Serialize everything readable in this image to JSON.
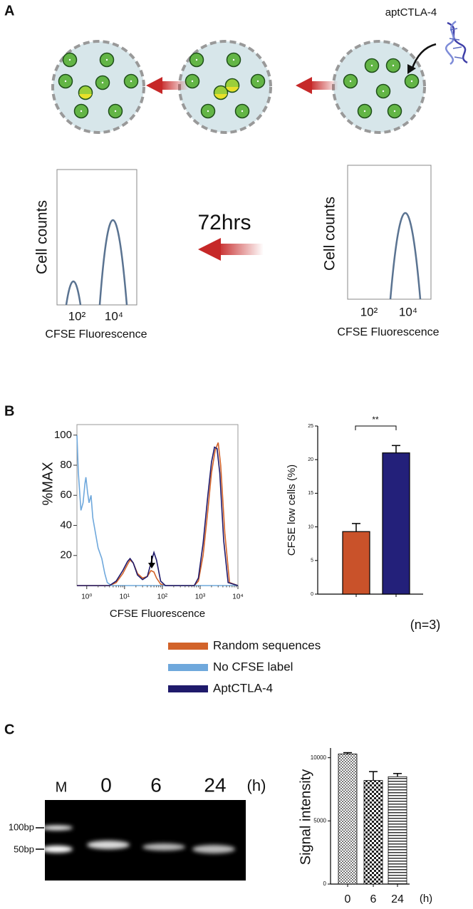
{
  "panels": [
    "A",
    "B",
    "C"
  ],
  "diagram": {
    "aptamer": "aptCTLA-4",
    "duration": "72hrs",
    "histograms": [
      {
        "ylabel": "Cell counts",
        "xlabel": "CFSE Fluorescence",
        "xticks": [
          "10²",
          "10⁴"
        ]
      },
      {
        "ylabel": "Cell counts",
        "xlabel": "CFSE Fluorescence",
        "xticks": [
          "10²",
          "10⁴"
        ]
      }
    ]
  },
  "gel": {
    "lanes": [
      "M",
      "0",
      "6",
      "24"
    ],
    "unit": "(h)",
    "markers": [
      "100bp",
      "50bp"
    ]
  },
  "chart_data": [
    {
      "type": "line",
      "xlabel": "CFSE Fluorescence",
      "ylabel": "%MAX",
      "xscale": "log",
      "xlim": [
        0.55,
        10000
      ],
      "ylim": [
        0,
        107
      ],
      "xticks": [
        {
          "value": 1,
          "label": "10⁰"
        },
        {
          "value": 10,
          "label": "10¹"
        },
        {
          "value": 100,
          "label": "10²"
        },
        {
          "value": 1000,
          "label": "10³"
        },
        {
          "value": 10000,
          "label": "10⁴"
        }
      ],
      "yticks": [
        20,
        40,
        60,
        80,
        100
      ],
      "legend": "bottom",
      "series": [
        {
          "name": "Random sequences",
          "color": "#d2632a",
          "x": [
            0.55,
            4,
            6,
            9,
            12,
            14,
            17,
            22,
            30,
            40,
            50,
            60,
            70,
            90,
            120,
            400,
            700,
            900,
            1200,
            1600,
            2000,
            2500,
            3000,
            3500,
            4500,
            6000,
            10000
          ],
          "values": [
            0,
            0,
            2,
            8,
            14,
            17,
            15,
            8,
            5,
            6,
            10,
            9,
            5,
            1,
            0,
            0,
            0,
            3,
            20,
            50,
            75,
            90,
            95,
            80,
            35,
            2,
            0
          ]
        },
        {
          "name": "No CFSE label",
          "color": "#6fa8dc",
          "x": [
            0.55,
            0.6,
            0.7,
            0.8,
            0.9,
            0.95,
            1.05,
            1.15,
            1.3,
            1.45,
            1.7,
            2.0,
            2.5,
            3.0,
            3.5,
            4.5,
            10000
          ],
          "values": [
            100,
            75,
            50,
            55,
            68,
            72,
            62,
            55,
            60,
            45,
            35,
            25,
            18,
            8,
            2,
            0,
            0
          ]
        },
        {
          "name": "AptCTLA-4",
          "color": "#1f1a6b",
          "x": [
            0.55,
            4,
            6,
            9,
            12,
            14,
            17,
            22,
            30,
            40,
            50,
            60,
            70,
            90,
            120,
            400,
            700,
            900,
            1200,
            1600,
            2000,
            2400,
            2800,
            3300,
            4200,
            5500,
            10000
          ],
          "values": [
            0,
            0,
            3,
            10,
            16,
            18,
            15,
            7,
            4,
            6,
            15,
            22,
            17,
            3,
            0,
            0,
            0,
            5,
            28,
            60,
            82,
            92,
            91,
            75,
            30,
            2,
            0
          ]
        }
      ]
    },
    {
      "type": "bar",
      "ylabel": "CFSE low cells (%)",
      "categories": [
        null,
        null
      ],
      "values": [
        9.3,
        21.0
      ],
      "errors": [
        1.2,
        1.1
      ],
      "colors": [
        "#c9522a",
        "#23207a"
      ],
      "ylim": [
        0,
        25
      ],
      "yticks": [
        0,
        5,
        10,
        15,
        20,
        25
      ],
      "significance": "**",
      "note": "(n=3)"
    },
    {
      "type": "bar",
      "ylabel": "Signal intensity",
      "xlabel": "(h)",
      "categories": [
        "0",
        "6",
        "24"
      ],
      "values": [
        10300,
        8200,
        8500
      ],
      "errors": [
        100,
        700,
        250
      ],
      "color": "#ffffff",
      "ylim": [
        0,
        10600
      ],
      "yticks": [
        0,
        5000,
        10000
      ]
    }
  ]
}
